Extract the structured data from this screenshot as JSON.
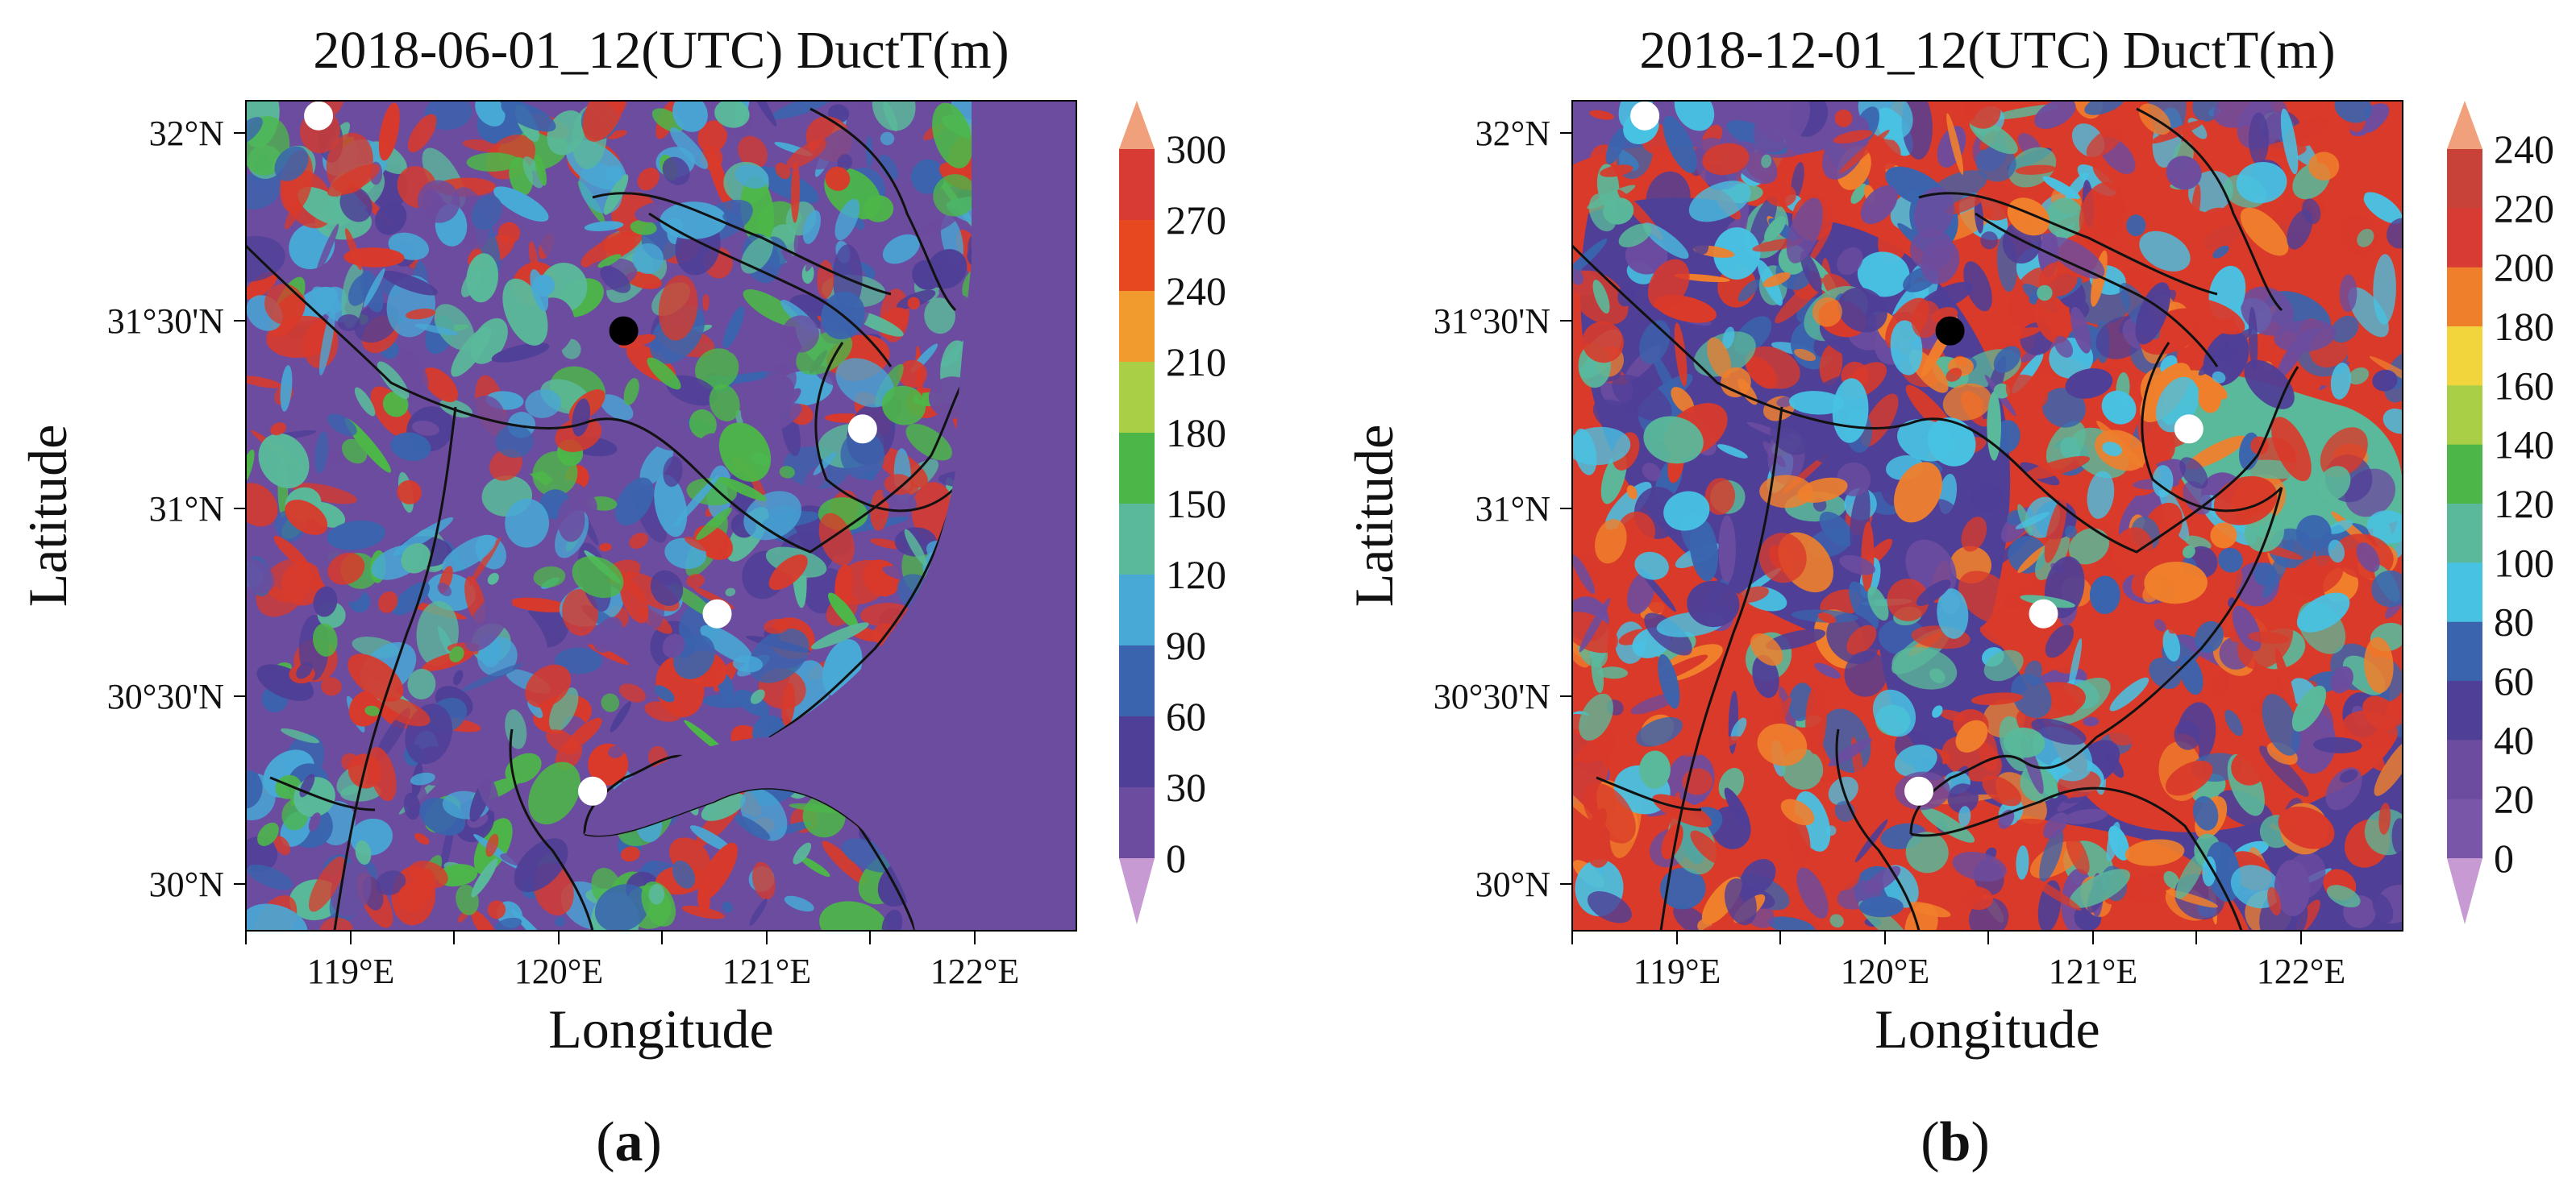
{
  "panels": [
    {
      "id": "a",
      "title": "2018-06-01_12(UTC) DuctT(m)",
      "caption_letter": "a",
      "xlabel": "Longitude",
      "ylabel": "Latitude",
      "x_ticks": [
        "119°E",
        "120°E",
        "121°E",
        "122°E"
      ],
      "y_ticks": [
        "32°N",
        "31°30'N",
        "31°N",
        "30°30'N",
        "30°N"
      ],
      "colorbar_labels": [
        "300",
        "270",
        "240",
        "210",
        "180",
        "150",
        "120",
        "90",
        "60",
        "30",
        "0"
      ],
      "colorbar_colors": [
        "#d73b34",
        "#e8481f",
        "#f19a2e",
        "#a8cf45",
        "#4cb748",
        "#5ab99a",
        "#48a8d6",
        "#3a64ae",
        "#4f3f97",
        "#6c4c9f"
      ],
      "colorbar_top_arrow": "#f0a07a",
      "colorbar_bottom_arrow": "#c79ad3",
      "dominant_fill": "#6c4c9f",
      "hot_fill": "#d93a2a",
      "markers": [
        {
          "lon": 118.85,
          "lat": 32.06,
          "color": "white"
        },
        {
          "lon": 120.32,
          "lat": 31.49,
          "color": "black"
        },
        {
          "lon": 121.47,
          "lat": 31.23,
          "color": "white"
        },
        {
          "lon": 120.77,
          "lat": 30.74,
          "color": "white"
        },
        {
          "lon": 120.17,
          "lat": 30.27,
          "color": "white"
        }
      ]
    },
    {
      "id": "b",
      "title": "2018-12-01_12(UTC) DuctT(m)",
      "caption_letter": "b",
      "xlabel": "Longitude",
      "ylabel": "Latitude",
      "x_ticks": [
        "119°E",
        "120°E",
        "121°E",
        "122°E"
      ],
      "y_ticks": [
        "32°N",
        "31°30'N",
        "31°N",
        "30°30'N",
        "30°N"
      ],
      "colorbar_labels": [
        "240",
        "220",
        "200",
        "180",
        "160",
        "140",
        "120",
        "100",
        "80",
        "60",
        "40",
        "20",
        "0"
      ],
      "colorbar_colors": [
        "#c9423a",
        "#d73b34",
        "#f07f2c",
        "#f2d53d",
        "#a8cf45",
        "#4cb748",
        "#5ab99a",
        "#48c2e3",
        "#3a64ae",
        "#4f3f97",
        "#6c4c9f",
        "#7a56a8"
      ],
      "colorbar_top_arrow": "#f0a07a",
      "colorbar_bottom_arrow": "#c79ad3",
      "dominant_fill": "#d93a2a",
      "hot_fill": "#6c4c9f",
      "markers": [
        {
          "lon": 118.85,
          "lat": 32.06,
          "color": "white"
        },
        {
          "lon": 120.32,
          "lat": 31.49,
          "color": "black"
        },
        {
          "lon": 121.47,
          "lat": 31.23,
          "color": "white"
        },
        {
          "lon": 120.77,
          "lat": 30.74,
          "color": "white"
        },
        {
          "lon": 120.17,
          "lat": 30.27,
          "color": "white"
        }
      ]
    }
  ]
}
